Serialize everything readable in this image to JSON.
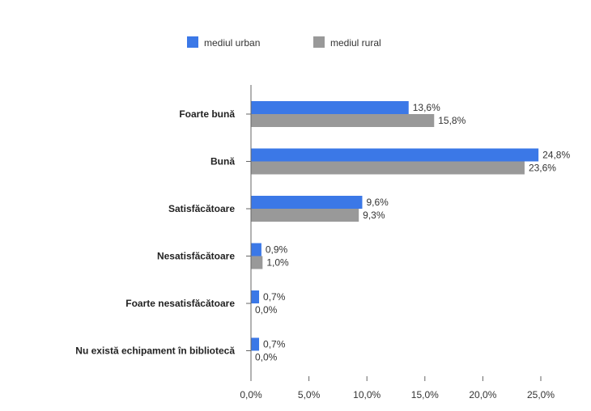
{
  "chart_data": {
    "type": "bar",
    "orientation": "horizontal",
    "categories": [
      "Foarte bună",
      "Bună",
      "Satisfăcătoare",
      "Nesatisfăcătoare",
      "Foarte nesatisfăcătoare",
      "Nu există echipament în bibliotecă"
    ],
    "series": [
      {
        "name": "mediul urban",
        "color": "#3b78e7",
        "values": [
          13.6,
          24.8,
          9.6,
          0.9,
          0.7,
          0.7
        ],
        "labels": [
          "13,6%",
          "24,8%",
          "9,6%",
          "0,9%",
          "0,7%",
          "0,7%"
        ]
      },
      {
        "name": "mediul rural",
        "color": "#999999",
        "values": [
          15.8,
          23.6,
          9.3,
          1.0,
          0.0,
          0.0
        ],
        "labels": [
          "15,8%",
          "23,6%",
          "9,3%",
          "1,0%",
          "0,0%",
          "0,0%"
        ]
      }
    ],
    "xlim": [
      0,
      25
    ],
    "x_ticks": [
      0,
      5,
      10,
      15,
      20,
      25
    ],
    "x_tick_labels": [
      "0,0%",
      "5,0%",
      "10,0%",
      "15,0%",
      "20,0%",
      "25,0%"
    ],
    "legend_position": "top-center",
    "grid": false
  }
}
